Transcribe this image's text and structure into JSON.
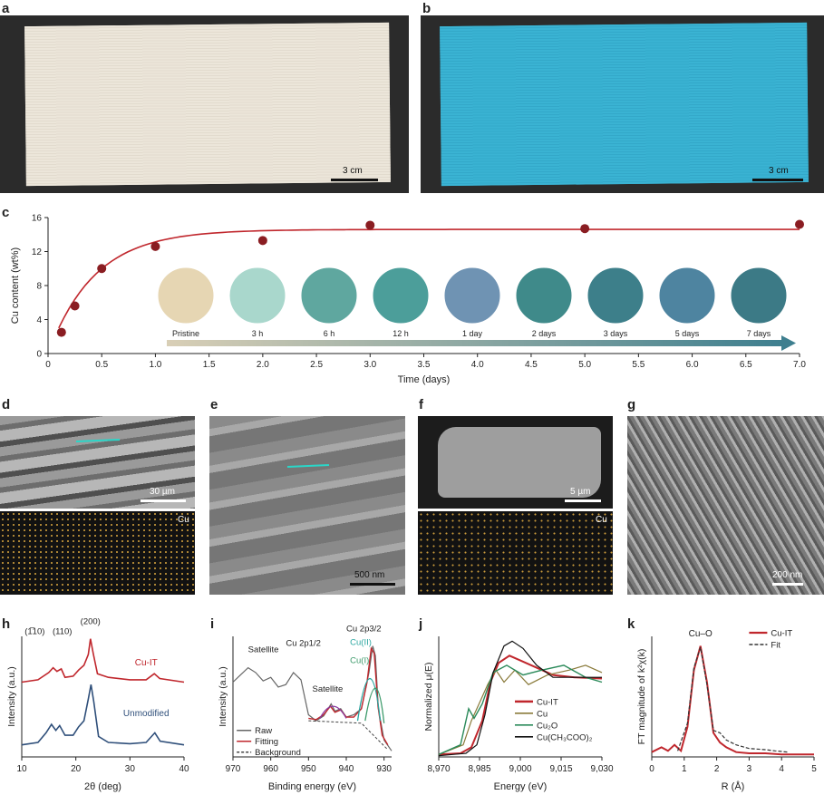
{
  "figure": {
    "panels": {
      "a": {
        "label": "a",
        "scale_bar": "3 cm"
      },
      "b": {
        "label": "b",
        "scale_bar": "3 cm"
      },
      "c": {
        "label": "c"
      },
      "d": {
        "label": "d",
        "scale_bar": "30 µm",
        "map_label": "Cu"
      },
      "e": {
        "label": "e",
        "scale_bar": "500 nm"
      },
      "f": {
        "label": "f",
        "scale_bar": "5 µm",
        "map_label": "Cu"
      },
      "g": {
        "label": "g",
        "scale_bar": "200 nm"
      },
      "h": {
        "label": "h"
      },
      "i": {
        "label": "i"
      },
      "j": {
        "label": "j"
      },
      "k": {
        "label": "k"
      }
    },
    "colors": {
      "red": "#c0272d",
      "blue": "#2f4f7a",
      "teal": "#2aa6a0",
      "dark": "#222222",
      "green": "#2b8a5a",
      "olive": "#8a7a3a"
    }
  },
  "chart_data": [
    {
      "id": "c",
      "type": "scatter",
      "xlabel": "Time (days)",
      "ylabel": "Cu content (wt%)",
      "xlim": [
        0,
        7.0
      ],
      "ylim": [
        0,
        16
      ],
      "xticks": [
        "0",
        "0.5",
        "1.0",
        "1.5",
        "2.0",
        "2.5",
        "3.0",
        "3.5",
        "4.0",
        "4.5",
        "5.0",
        "5.5",
        "6.0",
        "6.5",
        "7.0"
      ],
      "yticks": [
        "0",
        "4",
        "8",
        "12",
        "16"
      ],
      "points": [
        [
          0.125,
          2.5
        ],
        [
          0.25,
          5.6
        ],
        [
          0.5,
          10.0
        ],
        [
          1.0,
          12.6
        ],
        [
          2.0,
          13.3
        ],
        [
          3.0,
          15.1
        ],
        [
          5.0,
          14.7
        ],
        [
          7.0,
          15.2
        ]
      ],
      "fit": {
        "plateau": 14.6,
        "rate": 2.3
      },
      "insets": [
        "Pristine",
        "3 h",
        "6 h",
        "12 h",
        "1 day",
        "2 days",
        "3 days",
        "5 days",
        "7 days"
      ]
    },
    {
      "id": "h",
      "type": "line",
      "xlabel": "2θ (deg)",
      "ylabel": "Intensity (a.u.)",
      "xlim": [
        10,
        40
      ],
      "xticks": [
        "10",
        "20",
        "30",
        "40"
      ],
      "annotations": [
        "(1̅10)",
        "(110)",
        "(200)"
      ],
      "series": [
        {
          "name": "Cu-IT",
          "points": [
            [
              10,
              0.62
            ],
            [
              13,
              0.64
            ],
            [
              15,
              0.7
            ],
            [
              15.8,
              0.74
            ],
            [
              16.5,
              0.71
            ],
            [
              17.3,
              0.73
            ],
            [
              18,
              0.66
            ],
            [
              19.5,
              0.67
            ],
            [
              20.5,
              0.72
            ],
            [
              21.5,
              0.76
            ],
            [
              22.3,
              0.85
            ],
            [
              22.7,
              0.98
            ],
            [
              23.2,
              0.86
            ],
            [
              24,
              0.69
            ],
            [
              26,
              0.66
            ],
            [
              30,
              0.64
            ],
            [
              33,
              0.64
            ],
            [
              34.5,
              0.69
            ],
            [
              35.5,
              0.65
            ],
            [
              40,
              0.62
            ]
          ]
        },
        {
          "name": "Unmodified",
          "points": [
            [
              10,
              0.1
            ],
            [
              13,
              0.12
            ],
            [
              14.5,
              0.2
            ],
            [
              15.5,
              0.27
            ],
            [
              16.3,
              0.22
            ],
            [
              17,
              0.26
            ],
            [
              18,
              0.18
            ],
            [
              19.5,
              0.18
            ],
            [
              20.5,
              0.25
            ],
            [
              21.5,
              0.3
            ],
            [
              22.3,
              0.48
            ],
            [
              22.8,
              0.6
            ],
            [
              23.3,
              0.46
            ],
            [
              24.2,
              0.17
            ],
            [
              26,
              0.12
            ],
            [
              30,
              0.11
            ],
            [
              33,
              0.12
            ],
            [
              34.6,
              0.2
            ],
            [
              35.6,
              0.13
            ],
            [
              40,
              0.1
            ]
          ]
        }
      ]
    },
    {
      "id": "i",
      "type": "line",
      "xlabel": "Binding energy (eV)",
      "ylabel": "Intensity (a.u.)",
      "xlim": [
        970,
        928
      ],
      "xticks": [
        "970",
        "960",
        "950",
        "940",
        "930"
      ],
      "annotations": [
        "Satellite",
        "Cu 2p1/2",
        "Satellite",
        "Cu 2p3/2",
        "Cu(II)",
        "Cu(I)"
      ],
      "legend": [
        "Raw",
        "Fitting",
        "Background"
      ],
      "series": [
        {
          "name": "Raw",
          "points": [
            [
              970,
              0.62
            ],
            [
              968,
              0.68
            ],
            [
              966,
              0.74
            ],
            [
              964,
              0.7
            ],
            [
              962,
              0.63
            ],
            [
              960,
              0.66
            ],
            [
              958,
              0.58
            ],
            [
              956,
              0.6
            ],
            [
              954,
              0.7
            ],
            [
              952,
              0.64
            ],
            [
              950,
              0.35
            ],
            [
              948,
              0.3
            ],
            [
              946,
              0.34
            ],
            [
              944,
              0.44
            ],
            [
              943,
              0.38
            ],
            [
              941.5,
              0.4
            ],
            [
              940,
              0.33
            ],
            [
              938,
              0.35
            ],
            [
              936,
              0.4
            ],
            [
              934,
              0.7
            ],
            [
              933,
              0.92
            ],
            [
              932.3,
              0.84
            ],
            [
              931.5,
              0.4
            ],
            [
              930,
              0.14
            ],
            [
              928,
              0.05
            ]
          ]
        },
        {
          "name": "Fitting",
          "points": [
            [
              950,
              0.32
            ],
            [
              948,
              0.31
            ],
            [
              946,
              0.35
            ],
            [
              944.2,
              0.42
            ],
            [
              943,
              0.37
            ],
            [
              941.5,
              0.39
            ],
            [
              940,
              0.33
            ],
            [
              938,
              0.33
            ],
            [
              936,
              0.4
            ],
            [
              934.5,
              0.62
            ],
            [
              933.4,
              0.9
            ],
            [
              932.6,
              0.86
            ],
            [
              931.6,
              0.42
            ],
            [
              930.5,
              0.18
            ],
            [
              929,
              0.1
            ]
          ]
        }
      ]
    },
    {
      "id": "j",
      "type": "line",
      "xlabel": "Energy (eV)",
      "ylabel": "Normalized μ(E)",
      "xlim": [
        8970,
        9030
      ],
      "xticks": [
        "8,970",
        "8,985",
        "9,000",
        "9,015",
        "9,030"
      ],
      "series": [
        {
          "name": "Cu-IT",
          "points": [
            [
              8970,
              0.02
            ],
            [
              8978,
              0.03
            ],
            [
              8982,
              0.08
            ],
            [
              8986,
              0.3
            ],
            [
              8989,
              0.62
            ],
            [
              8992,
              0.78
            ],
            [
              8996,
              0.84
            ],
            [
              9000,
              0.8
            ],
            [
              9006,
              0.74
            ],
            [
              9012,
              0.68
            ],
            [
              9020,
              0.66
            ],
            [
              9030,
              0.65
            ]
          ]
        },
        {
          "name": "Cu",
          "points": [
            [
              8970,
              0.02
            ],
            [
              8979,
              0.1
            ],
            [
              8982,
              0.3
            ],
            [
              8985,
              0.45
            ],
            [
              8988,
              0.6
            ],
            [
              8991,
              0.72
            ],
            [
              8994,
              0.62
            ],
            [
              8998,
              0.72
            ],
            [
              9003,
              0.6
            ],
            [
              9010,
              0.68
            ],
            [
              9018,
              0.72
            ],
            [
              9024,
              0.76
            ],
            [
              9030,
              0.7
            ]
          ]
        },
        {
          "name": "Cu₂O",
          "points": [
            [
              8970,
              0.02
            ],
            [
              8978,
              0.1
            ],
            [
              8981,
              0.4
            ],
            [
              8983,
              0.32
            ],
            [
              8986,
              0.44
            ],
            [
              8990,
              0.7
            ],
            [
              8995,
              0.76
            ],
            [
              9001,
              0.68
            ],
            [
              9008,
              0.72
            ],
            [
              9016,
              0.76
            ],
            [
              9024,
              0.66
            ],
            [
              9030,
              0.62
            ]
          ]
        },
        {
          "name": "Cu(CH₃COO)₂",
          "points": [
            [
              8970,
              0.01
            ],
            [
              8980,
              0.03
            ],
            [
              8984,
              0.1
            ],
            [
              8987,
              0.35
            ],
            [
              8990,
              0.7
            ],
            [
              8994,
              0.92
            ],
            [
              8997,
              0.96
            ],
            [
              9001,
              0.9
            ],
            [
              9006,
              0.76
            ],
            [
              9012,
              0.66
            ],
            [
              9020,
              0.66
            ],
            [
              9030,
              0.66
            ]
          ]
        }
      ]
    },
    {
      "id": "k",
      "type": "line",
      "xlabel": "R (Å)",
      "ylabel": "FT magnitude of k²χ(k)",
      "xlim": [
        0,
        5
      ],
      "xticks": [
        "0",
        "1",
        "2",
        "3",
        "4",
        "5"
      ],
      "annotations": [
        "Cu–O"
      ],
      "series": [
        {
          "name": "Cu-IT",
          "points": [
            [
              0,
              0.04
            ],
            [
              0.3,
              0.08
            ],
            [
              0.5,
              0.05
            ],
            [
              0.7,
              0.1
            ],
            [
              0.9,
              0.05
            ],
            [
              1.1,
              0.25
            ],
            [
              1.3,
              0.72
            ],
            [
              1.5,
              0.92
            ],
            [
              1.7,
              0.62
            ],
            [
              1.9,
              0.2
            ],
            [
              2.1,
              0.12
            ],
            [
              2.3,
              0.08
            ],
            [
              2.6,
              0.04
            ],
            [
              3.0,
              0.03
            ],
            [
              3.5,
              0.03
            ],
            [
              4,
              0.02
            ],
            [
              5,
              0.02
            ]
          ]
        },
        {
          "name": "Fit",
          "points": [
            [
              0.8,
              0.05
            ],
            [
              1.1,
              0.28
            ],
            [
              1.3,
              0.74
            ],
            [
              1.5,
              0.91
            ],
            [
              1.7,
              0.6
            ],
            [
              1.9,
              0.22
            ],
            [
              2.1,
              0.2
            ],
            [
              2.3,
              0.14
            ],
            [
              2.6,
              0.1
            ],
            [
              3.0,
              0.07
            ],
            [
              3.5,
              0.06
            ],
            [
              3.8,
              0.05
            ],
            [
              4.2,
              0.04
            ]
          ]
        }
      ]
    }
  ]
}
